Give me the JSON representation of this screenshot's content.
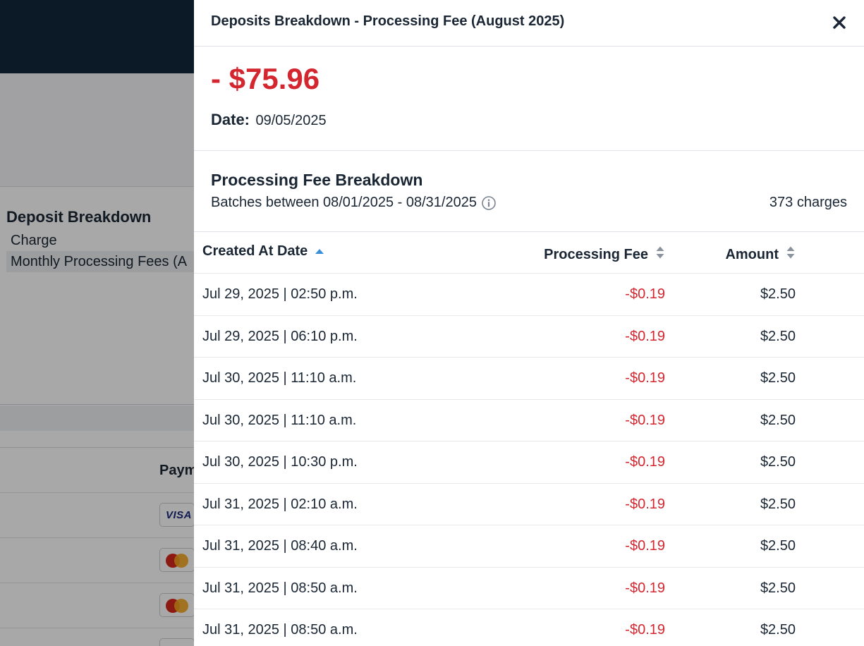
{
  "background": {
    "section_title": "Deposit Breakdown",
    "column_label": "Charge",
    "row_label": "Monthly Processing Fees (A",
    "table_header": "Paym",
    "card_label": "VISA"
  },
  "panel": {
    "title": "Deposits Breakdown - Processing Fee (August 2025)",
    "close_icon": "close-icon",
    "amount": "- $75.96",
    "date_label": "Date:",
    "date_value": "09/05/2025",
    "breakdown_title": "Processing Fee Breakdown",
    "breakdown_subtitle": "Batches between 08/01/2025 - 08/31/2025",
    "charges_count": "373 charges",
    "colors": {
      "negative": "#d3262f",
      "sort_active": "#3a8fd6",
      "header_bg": "#13263a"
    }
  },
  "table": {
    "columns": [
      {
        "key": "date",
        "label": "Created At Date",
        "sort": "ascending"
      },
      {
        "key": "fee",
        "label": "Processing Fee",
        "sort": "none"
      },
      {
        "key": "amount",
        "label": "Amount",
        "sort": "none"
      }
    ],
    "rows": [
      {
        "date": "Jul 29, 2025 | 02:50 p.m.",
        "fee": "-$0.19",
        "amount": "$2.50"
      },
      {
        "date": "Jul 29, 2025 | 06:10 p.m.",
        "fee": "-$0.19",
        "amount": "$2.50"
      },
      {
        "date": "Jul 30, 2025 | 11:10 a.m.",
        "fee": "-$0.19",
        "amount": "$2.50"
      },
      {
        "date": "Jul 30, 2025 | 11:10 a.m.",
        "fee": "-$0.19",
        "amount": "$2.50"
      },
      {
        "date": "Jul 30, 2025 | 10:30 p.m.",
        "fee": "-$0.19",
        "amount": "$2.50"
      },
      {
        "date": "Jul 31, 2025 | 02:10 a.m.",
        "fee": "-$0.19",
        "amount": "$2.50"
      },
      {
        "date": "Jul 31, 2025 | 08:40 a.m.",
        "fee": "-$0.19",
        "amount": "$2.50"
      },
      {
        "date": "Jul 31, 2025 | 08:50 a.m.",
        "fee": "-$0.19",
        "amount": "$2.50"
      },
      {
        "date": "Jul 31, 2025 | 08:50 a.m.",
        "fee": "-$0.19",
        "amount": "$2.50"
      }
    ]
  }
}
